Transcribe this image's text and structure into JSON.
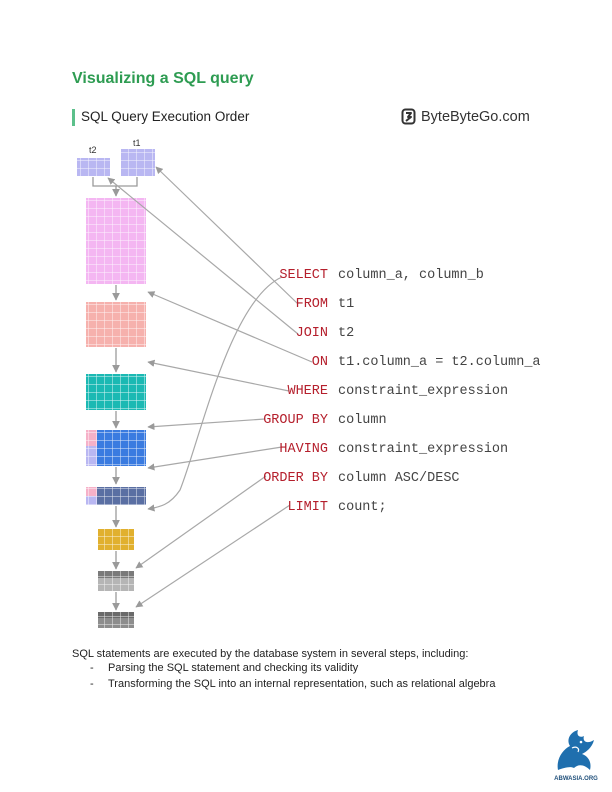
{
  "page": {
    "heading": "Visualizing a SQL query"
  },
  "figure": {
    "title": "SQL Query Execution Order",
    "brand": "ByteByteGo.com",
    "brand_icon": "bytebytego-logo-icon",
    "table_labels": {
      "t1": "t1",
      "t2": "t2"
    },
    "clauses": [
      {
        "keyword": "SELECT",
        "argument": "column_a, column_b"
      },
      {
        "keyword": "FROM",
        "argument": "t1"
      },
      {
        "keyword": "JOIN",
        "argument": "t2"
      },
      {
        "keyword": "ON",
        "argument": "t1.column_a = t2.column_a"
      },
      {
        "keyword": "WHERE",
        "argument": "constraint_expression"
      },
      {
        "keyword": "GROUP BY",
        "argument": "column"
      },
      {
        "keyword": "HAVING",
        "argument": "constraint_expression"
      },
      {
        "keyword": "ORDER BY",
        "argument": "column ASC/DESC"
      },
      {
        "keyword": "LIMIT",
        "argument": "count;"
      }
    ],
    "colors": {
      "keyword": "#b51f2c",
      "heading": "#2e9c52",
      "t1_t2": "#b9b7f2",
      "joined": "#f4b6f2",
      "on": "#f6b1ad",
      "where": "#1bb9b3",
      "group_by": "#3a7be0",
      "order_by": "#5a6fa3",
      "limit": "#e1b02e",
      "select": "#8d8d8d"
    }
  },
  "body": {
    "intro": "SQL statements are executed by the database system in several steps, including:",
    "bullets": [
      {
        "marker": "-",
        "text": "Parsing the SQL statement and checking its validity"
      },
      {
        "marker": "-",
        "text": "Transforming the SQL into an internal representation, such as relational algebra"
      }
    ]
  },
  "footer": {
    "logo_text": "ABWASIA.ORG",
    "logo_icon": "abwasia-dragon-logo"
  }
}
